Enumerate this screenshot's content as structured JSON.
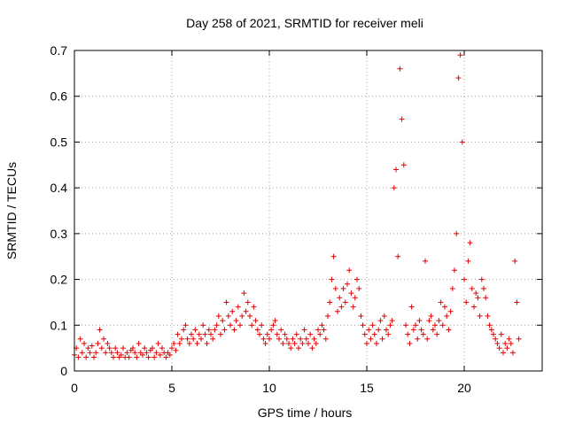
{
  "chart_data": {
    "type": "scatter",
    "title": "Day 258 of 2021, SRMTID for receiver meli",
    "xlabel": "GPS time / hours",
    "ylabel": "SRMTID / TECUs",
    "xlim": [
      0,
      24
    ],
    "ylim": [
      0,
      0.7
    ],
    "xticks": [
      0,
      5,
      10,
      15,
      20
    ],
    "xtick_labels": [
      "0",
      "5",
      "10",
      "15",
      "20"
    ],
    "yticks": [
      0,
      0.1,
      0.2,
      0.3,
      0.4,
      0.5,
      0.6,
      0.7
    ],
    "ytick_labels": [
      "0",
      "0.1",
      "0.2",
      "0.3",
      "0.4",
      "0.5",
      "0.6",
      "0.7"
    ],
    "grid": true,
    "marker": "+",
    "marker_color": "#e00000",
    "series": [
      {
        "name": "SRMTID",
        "x": [
          0.0,
          0.1,
          0.2,
          0.3,
          0.4,
          0.5,
          0.6,
          0.7,
          0.8,
          0.9,
          1.0,
          1.1,
          1.2,
          1.3,
          1.4,
          1.5,
          1.6,
          1.7,
          1.8,
          1.9,
          2.0,
          2.1,
          2.2,
          2.3,
          2.4,
          2.5,
          2.6,
          2.7,
          2.8,
          2.9,
          3.0,
          3.1,
          3.2,
          3.3,
          3.4,
          3.5,
          3.6,
          3.7,
          3.8,
          3.9,
          4.0,
          4.1,
          4.2,
          4.3,
          4.4,
          4.5,
          4.6,
          4.7,
          4.8,
          4.9,
          5.0,
          5.1,
          5.2,
          5.3,
          5.4,
          5.5,
          5.6,
          5.7,
          5.8,
          5.9,
          6.0,
          6.1,
          6.2,
          6.3,
          6.4,
          6.5,
          6.6,
          6.7,
          6.8,
          6.9,
          7.0,
          7.1,
          7.2,
          7.3,
          7.4,
          7.5,
          7.6,
          7.7,
          7.8,
          7.9,
          8.0,
          8.1,
          8.2,
          8.3,
          8.4,
          8.5,
          8.6,
          8.7,
          8.8,
          8.9,
          9.0,
          9.1,
          9.2,
          9.3,
          9.4,
          9.5,
          9.6,
          9.7,
          9.8,
          9.9,
          10.0,
          10.1,
          10.2,
          10.3,
          10.4,
          10.5,
          10.6,
          10.7,
          10.8,
          10.9,
          11.0,
          11.1,
          11.2,
          11.3,
          11.4,
          11.5,
          11.6,
          11.7,
          11.8,
          11.9,
          12.0,
          12.1,
          12.2,
          12.3,
          12.4,
          12.5,
          12.6,
          12.7,
          12.8,
          12.9,
          13.0,
          13.1,
          13.2,
          13.3,
          13.4,
          13.5,
          13.6,
          13.7,
          13.8,
          13.9,
          14.0,
          14.1,
          14.2,
          14.3,
          14.4,
          14.5,
          14.6,
          14.7,
          14.8,
          14.9,
          15.0,
          15.1,
          15.2,
          15.3,
          15.4,
          15.5,
          15.6,
          15.7,
          15.8,
          15.9,
          16.0,
          16.1,
          16.2,
          16.3,
          16.4,
          16.5,
          16.6,
          16.7,
          16.8,
          16.9,
          17.0,
          17.1,
          17.2,
          17.3,
          17.4,
          17.5,
          17.6,
          17.7,
          17.8,
          17.9,
          18.0,
          18.1,
          18.2,
          18.3,
          18.4,
          18.5,
          18.6,
          18.7,
          18.8,
          18.9,
          19.0,
          19.1,
          19.2,
          19.3,
          19.4,
          19.5,
          19.6,
          19.7,
          19.8,
          19.9,
          20.0,
          20.1,
          20.2,
          20.3,
          20.4,
          20.5,
          20.6,
          20.7,
          20.8,
          20.9,
          21.0,
          21.1,
          21.2,
          21.3,
          21.4,
          21.5,
          21.6,
          21.7,
          21.8,
          21.9,
          22.0,
          22.1,
          22.2,
          22.3,
          22.4,
          22.5,
          22.6,
          22.7,
          22.8
        ],
        "y": [
          0.035,
          0.05,
          0.03,
          0.07,
          0.04,
          0.06,
          0.03,
          0.05,
          0.04,
          0.055,
          0.03,
          0.04,
          0.06,
          0.09,
          0.05,
          0.07,
          0.04,
          0.06,
          0.05,
          0.04,
          0.03,
          0.05,
          0.04,
          0.03,
          0.035,
          0.05,
          0.03,
          0.04,
          0.03,
          0.045,
          0.05,
          0.04,
          0.03,
          0.06,
          0.04,
          0.035,
          0.05,
          0.04,
          0.03,
          0.045,
          0.05,
          0.03,
          0.04,
          0.06,
          0.035,
          0.05,
          0.04,
          0.03,
          0.04,
          0.035,
          0.05,
          0.06,
          0.045,
          0.08,
          0.06,
          0.07,
          0.09,
          0.1,
          0.07,
          0.06,
          0.08,
          0.07,
          0.09,
          0.06,
          0.08,
          0.07,
          0.1,
          0.08,
          0.06,
          0.09,
          0.08,
          0.07,
          0.09,
          0.1,
          0.12,
          0.08,
          0.11,
          0.09,
          0.15,
          0.12,
          0.1,
          0.13,
          0.09,
          0.11,
          0.14,
          0.1,
          0.12,
          0.17,
          0.13,
          0.15,
          0.12,
          0.1,
          0.14,
          0.11,
          0.09,
          0.08,
          0.1,
          0.07,
          0.06,
          0.08,
          0.07,
          0.09,
          0.1,
          0.11,
          0.08,
          0.07,
          0.09,
          0.06,
          0.08,
          0.07,
          0.06,
          0.05,
          0.07,
          0.06,
          0.08,
          0.05,
          0.07,
          0.06,
          0.09,
          0.07,
          0.06,
          0.08,
          0.05,
          0.07,
          0.06,
          0.09,
          0.08,
          0.1,
          0.09,
          0.07,
          0.12,
          0.15,
          0.2,
          0.25,
          0.18,
          0.13,
          0.16,
          0.14,
          0.18,
          0.15,
          0.19,
          0.22,
          0.17,
          0.14,
          0.16,
          0.2,
          0.18,
          0.12,
          0.1,
          0.08,
          0.06,
          0.09,
          0.07,
          0.1,
          0.08,
          0.06,
          0.09,
          0.11,
          0.07,
          0.12,
          0.09,
          0.08,
          0.1,
          0.11,
          0.4,
          0.44,
          0.25,
          0.66,
          0.55,
          0.45,
          0.1,
          0.08,
          0.06,
          0.14,
          0.09,
          0.1,
          0.07,
          0.11,
          0.09,
          0.08,
          0.24,
          0.07,
          0.11,
          0.12,
          0.09,
          0.1,
          0.08,
          0.11,
          0.15,
          0.1,
          0.14,
          0.12,
          0.09,
          0.13,
          0.18,
          0.22,
          0.3,
          0.64,
          0.69,
          0.5,
          0.2,
          0.15,
          0.24,
          0.28,
          0.18,
          0.14,
          0.17,
          0.16,
          0.12,
          0.2,
          0.18,
          0.16,
          0.12,
          0.1,
          0.09,
          0.08,
          0.07,
          0.06,
          0.05,
          0.08,
          0.04,
          0.06,
          0.05,
          0.07,
          0.06,
          0.04,
          0.24,
          0.15,
          0.07
        ]
      }
    ]
  }
}
